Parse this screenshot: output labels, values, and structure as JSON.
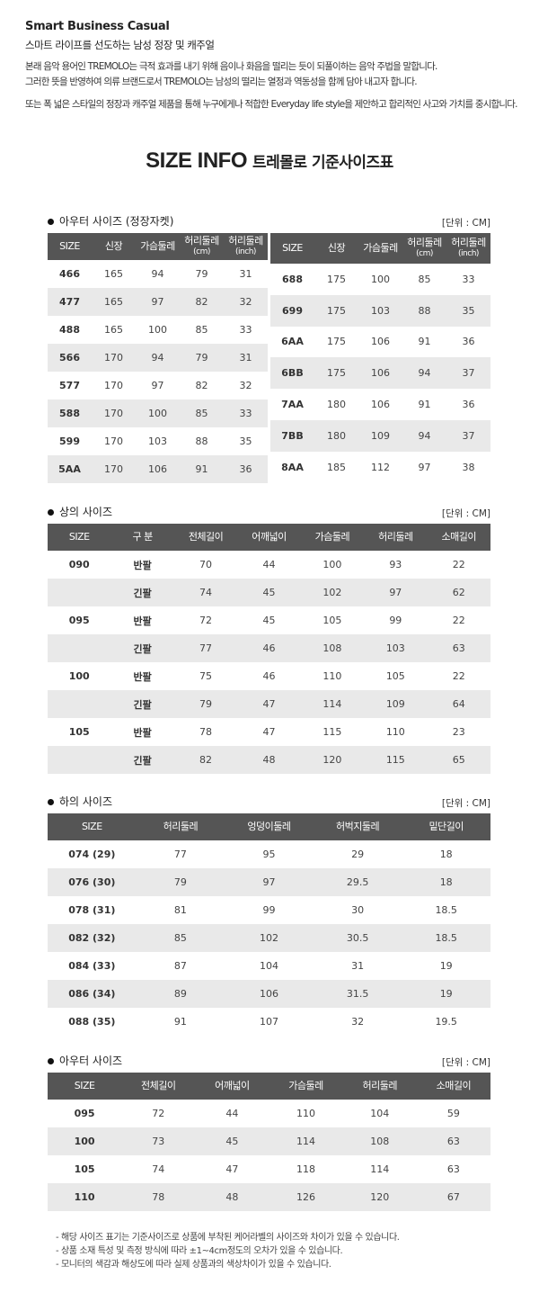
{
  "header": {
    "brand": "Smart Business Casual",
    "subtitle": "스마트 라이프를 선도하는 남성 정장 및 캐주얼",
    "para1": [
      "본래 음악 용어인 TREMOLO는 극적 효과를 내기 위해 음이나 화음을 떨리는 듯이 되풀이하는 음악 주법을 말합니다.",
      "그러한 뜻을 반영하여 의류 브랜드로서 TREMOLO는 남성의 떨리는 열정과 역동성을 함께 담아 내고자 합니다."
    ],
    "para2": "또는 폭 넓은 스타일의 정장과 캐주얼 제품을 통해 누구에게나 적합한 Everyday life style을 제안하고 합리적인 사고와 가치를 중시합니다."
  },
  "title": {
    "en": "SIZE INFO",
    "ko": "트레몰로 기준사이즈표"
  },
  "sections": [
    {
      "label": "아우터 사이즈 (정장자켓)",
      "unit": "[단위 : CM]",
      "headers": [
        "SIZE",
        "신장",
        "가슴둘레",
        "허리둘레|(cm)",
        "허리둘레|(inch)"
      ],
      "left": [
        [
          "466",
          "165",
          "94",
          "79",
          "31"
        ],
        [
          "477",
          "165",
          "97",
          "82",
          "32"
        ],
        [
          "488",
          "165",
          "100",
          "85",
          "33"
        ],
        [
          "566",
          "170",
          "94",
          "79",
          "31"
        ],
        [
          "577",
          "170",
          "97",
          "82",
          "32"
        ],
        [
          "588",
          "170",
          "100",
          "85",
          "33"
        ],
        [
          "599",
          "170",
          "103",
          "88",
          "35"
        ],
        [
          "5AA",
          "170",
          "106",
          "91",
          "36"
        ]
      ],
      "right": [
        [
          "688",
          "175",
          "100",
          "85",
          "33"
        ],
        [
          "699",
          "175",
          "103",
          "88",
          "35"
        ],
        [
          "6AA",
          "175",
          "106",
          "91",
          "36"
        ],
        [
          "6BB",
          "175",
          "106",
          "94",
          "37"
        ],
        [
          "7AA",
          "180",
          "106",
          "91",
          "36"
        ],
        [
          "7BB",
          "180",
          "109",
          "94",
          "37"
        ],
        [
          "8AA",
          "185",
          "112",
          "97",
          "38"
        ]
      ]
    },
    {
      "label": "상의 사이즈",
      "unit": "[단위 : CM]",
      "headers": [
        "SIZE",
        "구 분",
        "전체길이",
        "어깨넓이",
        "가슴둘레",
        "허리둘레",
        "소매길이"
      ],
      "rows": [
        [
          "090",
          "반팔",
          "70",
          "44",
          "100",
          "93",
          "22"
        ],
        [
          "",
          "긴팔",
          "74",
          "45",
          "102",
          "97",
          "62"
        ],
        [
          "095",
          "반팔",
          "72",
          "45",
          "105",
          "99",
          "22"
        ],
        [
          "",
          "긴팔",
          "77",
          "46",
          "108",
          "103",
          "63"
        ],
        [
          "100",
          "반팔",
          "75",
          "46",
          "110",
          "105",
          "22"
        ],
        [
          "",
          "긴팔",
          "79",
          "47",
          "114",
          "109",
          "64"
        ],
        [
          "105",
          "반팔",
          "78",
          "47",
          "115",
          "110",
          "23"
        ],
        [
          "",
          "긴팔",
          "82",
          "48",
          "120",
          "115",
          "65"
        ]
      ]
    },
    {
      "label": "하의 사이즈",
      "unit": "[단위 : CM]",
      "headers": [
        "SIZE",
        "허리둘레",
        "엉덩이둘레",
        "허벅지둘레",
        "밑단길이"
      ],
      "rows": [
        [
          "074 (29)",
          "77",
          "95",
          "29",
          "18"
        ],
        [
          "076 (30)",
          "79",
          "97",
          "29.5",
          "18"
        ],
        [
          "078 (31)",
          "81",
          "99",
          "30",
          "18.5"
        ],
        [
          "082 (32)",
          "85",
          "102",
          "30.5",
          "18.5"
        ],
        [
          "084 (33)",
          "87",
          "104",
          "31",
          "19"
        ],
        [
          "086 (34)",
          "89",
          "106",
          "31.5",
          "19"
        ],
        [
          "088 (35)",
          "91",
          "107",
          "32",
          "19.5"
        ]
      ]
    },
    {
      "label": "아우터 사이즈",
      "unit": "[단위 : CM]",
      "headers": [
        "SIZE",
        "전체길이",
        "어깨넓이",
        "가슴둘레",
        "허리둘레",
        "소매길이"
      ],
      "rows": [
        [
          "095",
          "72",
          "44",
          "110",
          "104",
          "59"
        ],
        [
          "100",
          "73",
          "45",
          "114",
          "108",
          "63"
        ],
        [
          "105",
          "74",
          "47",
          "118",
          "114",
          "63"
        ],
        [
          "110",
          "78",
          "48",
          "126",
          "120",
          "67"
        ]
      ]
    }
  ],
  "notes": [
    "- 해당 사이즈 표기는 기준사이즈로 상품에 부착된 케어라벨의 사이즈와 차이가 있을 수 있습니다.",
    "- 상품 소재 특성 및 측정 방식에 따라 ±1~4cm정도의 오차가 있을 수 있습니다.",
    "- 모니터의 색감과 해상도에 따라 실제 상품과의 색상차이가 있을 수 있습니다."
  ]
}
